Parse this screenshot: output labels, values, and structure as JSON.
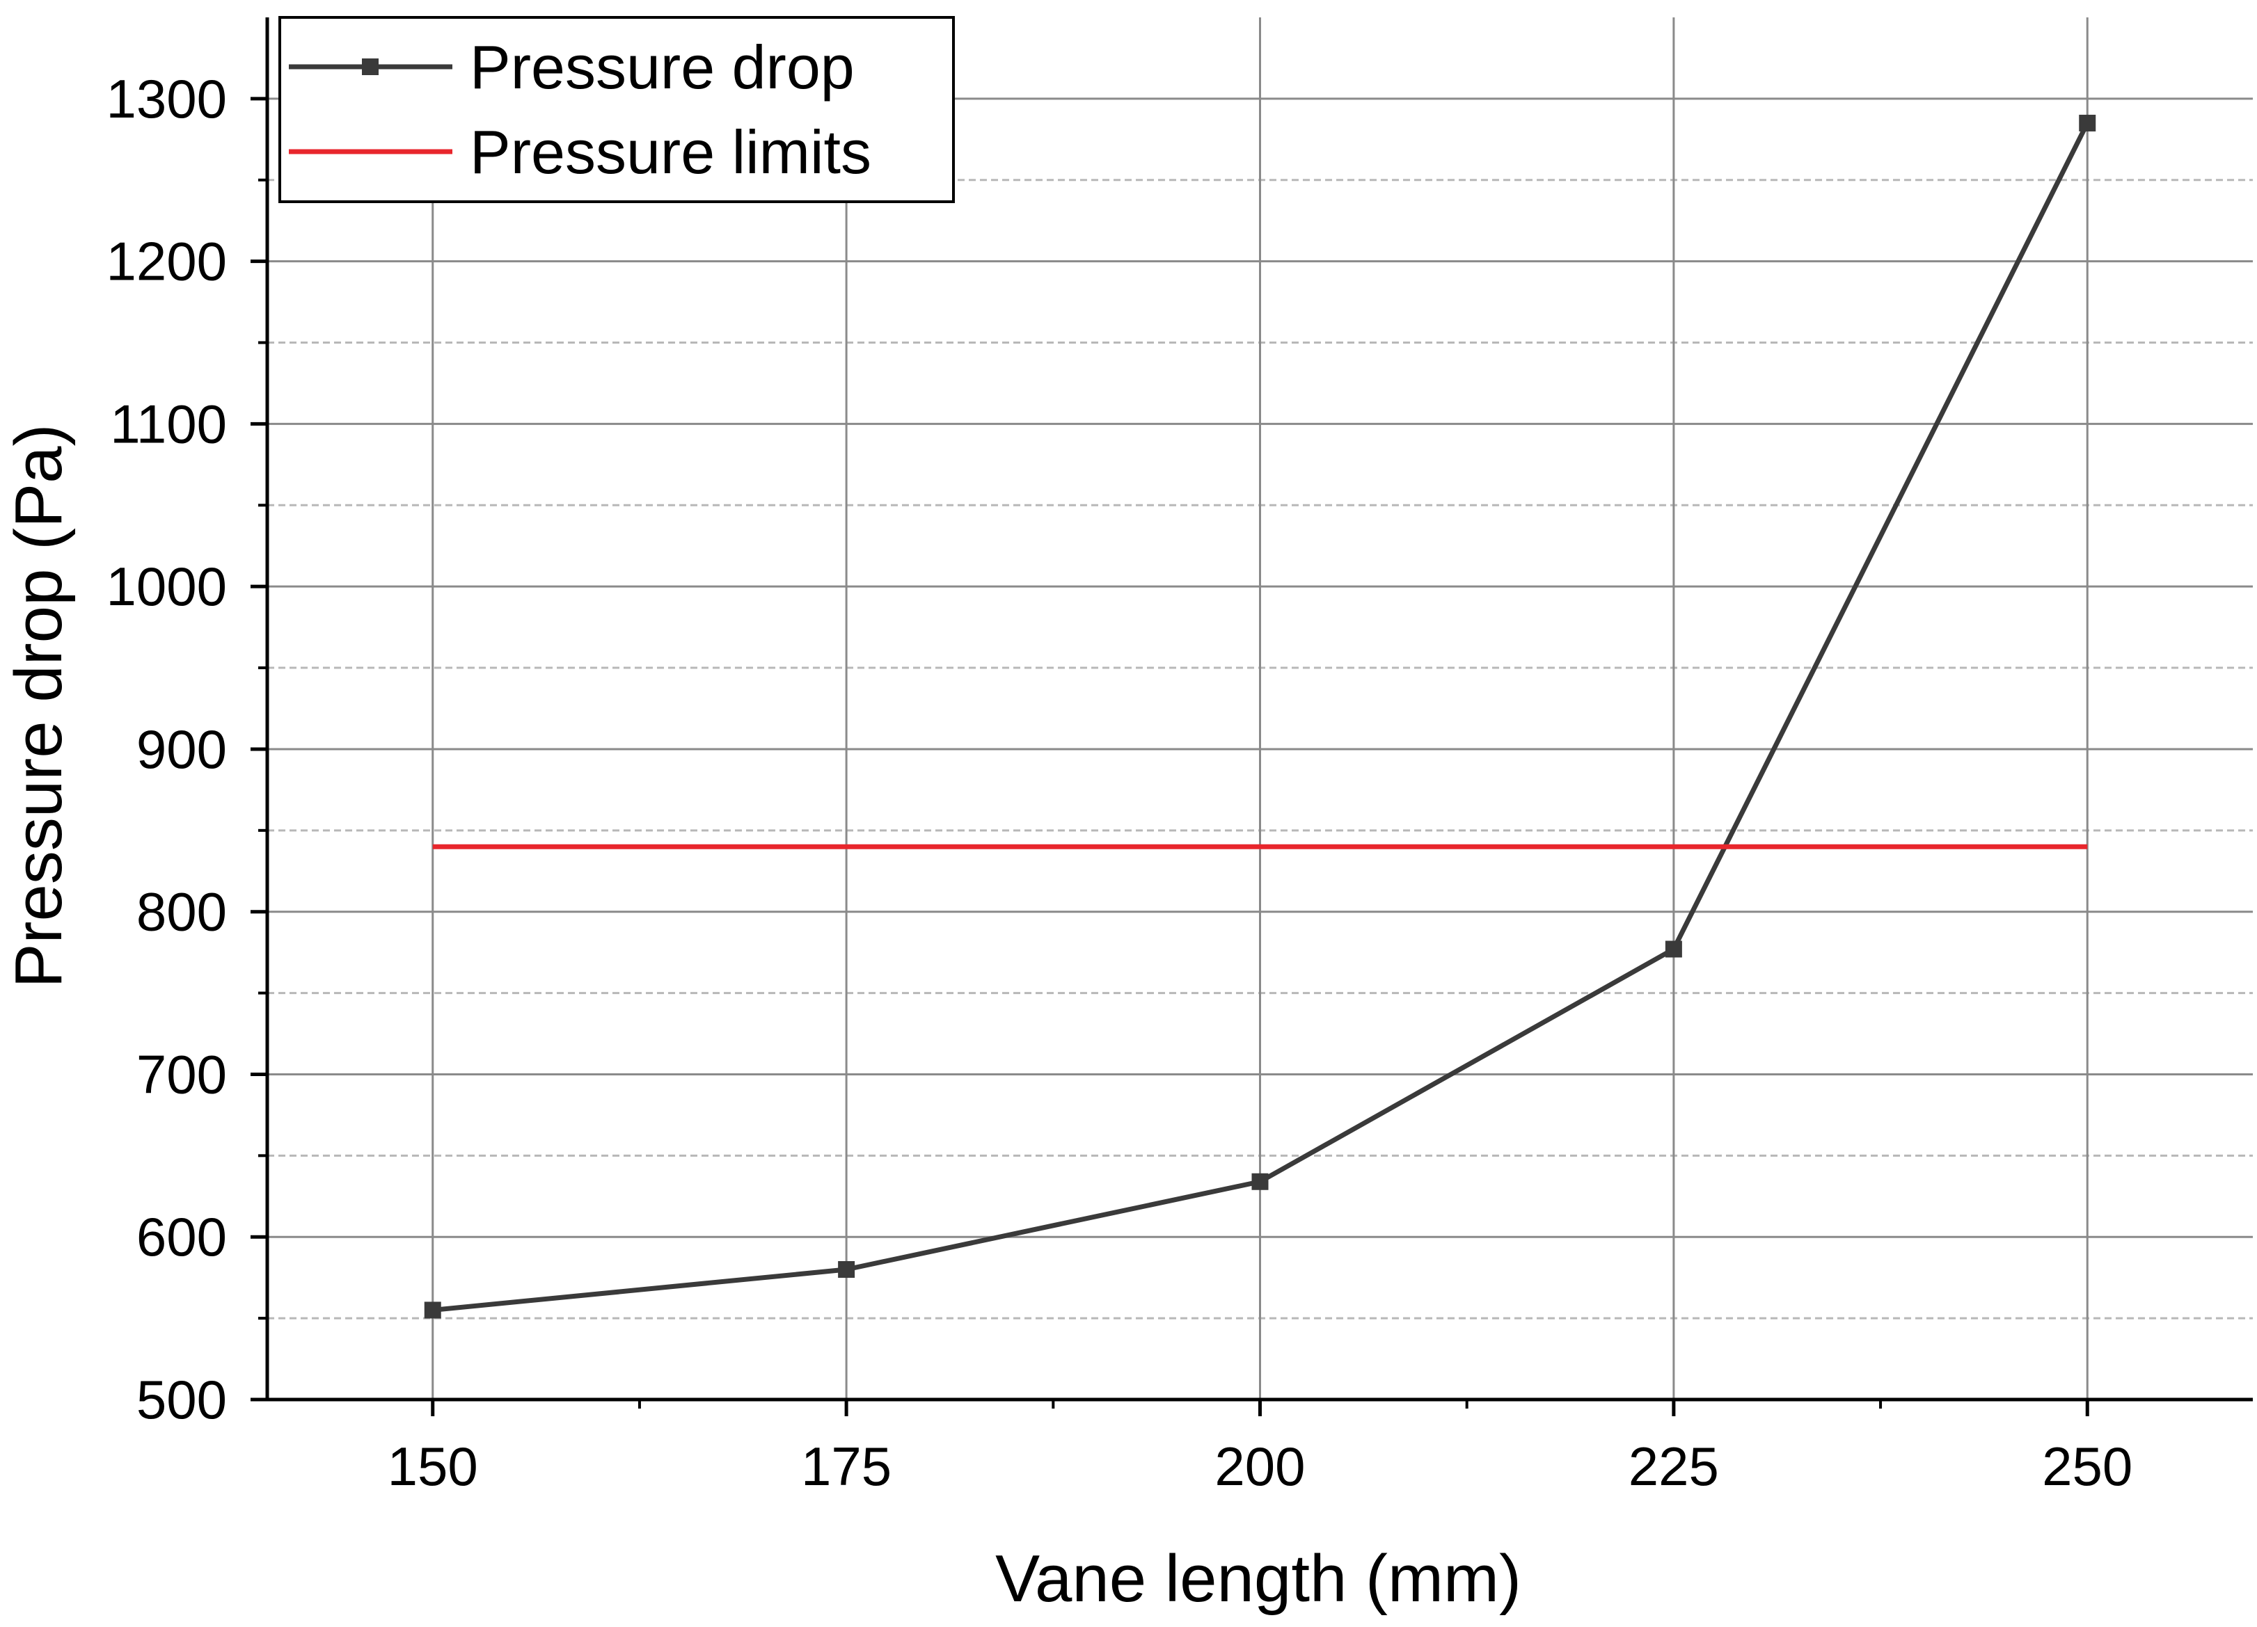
{
  "chart_data": {
    "type": "line",
    "title": "",
    "xlabel": "Vane length (mm)",
    "ylabel": "Pressure drop (Pa)",
    "xlim": [
      140,
      260
    ],
    "ylim": [
      500,
      1350
    ],
    "x_ticks": [
      150,
      175,
      200,
      225,
      250
    ],
    "y_ticks": [
      500,
      600,
      700,
      800,
      900,
      1000,
      1100,
      1200,
      1300
    ],
    "grid": true,
    "legend_position": "top-left",
    "series": [
      {
        "name": "Pressure drop",
        "color": "#3a3a3a",
        "marker": "square",
        "x": [
          150,
          175,
          200,
          225,
          250
        ],
        "values": [
          555,
          580,
          634,
          777,
          1285
        ]
      },
      {
        "name": "Pressure limits",
        "color": "#e8262c",
        "marker": "none",
        "x": [
          150,
          250
        ],
        "values": [
          840,
          840
        ]
      }
    ]
  }
}
